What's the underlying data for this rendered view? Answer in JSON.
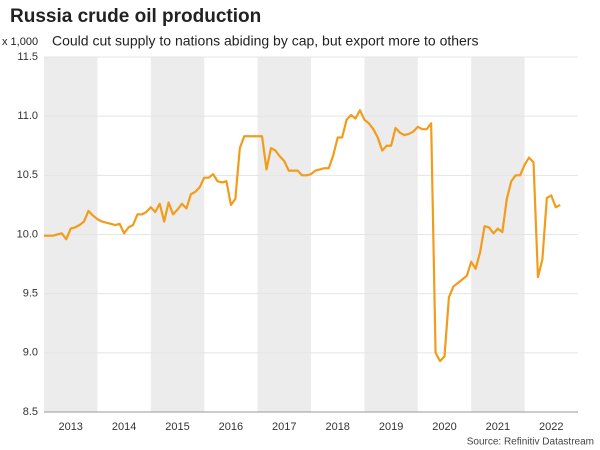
{
  "chart_data": {
    "type": "line",
    "title": "Russia crude oil production",
    "subtitle": "Could cut supply to nations abiding by cap, but export more to others",
    "y_unit": "x 1,000",
    "source": "Source: Refinitiv Datastream",
    "x": [
      2013,
      2013.083,
      2013.167,
      2013.25,
      2013.333,
      2013.417,
      2013.5,
      2013.583,
      2013.667,
      2013.75,
      2013.833,
      2013.917,
      2014,
      2014.083,
      2014.167,
      2014.25,
      2014.333,
      2014.417,
      2014.5,
      2014.583,
      2014.667,
      2014.75,
      2014.833,
      2014.917,
      2015,
      2015.083,
      2015.167,
      2015.25,
      2015.333,
      2015.417,
      2015.5,
      2015.583,
      2015.667,
      2015.75,
      2015.833,
      2015.917,
      2016,
      2016.083,
      2016.167,
      2016.25,
      2016.333,
      2016.417,
      2016.5,
      2016.583,
      2016.667,
      2016.75,
      2016.833,
      2016.917,
      2017,
      2017.083,
      2017.167,
      2017.25,
      2017.333,
      2017.417,
      2017.5,
      2017.583,
      2017.667,
      2017.75,
      2017.833,
      2017.917,
      2018,
      2018.083,
      2018.167,
      2018.25,
      2018.333,
      2018.417,
      2018.5,
      2018.583,
      2018.667,
      2018.75,
      2018.833,
      2018.917,
      2019,
      2019.083,
      2019.167,
      2019.25,
      2019.333,
      2019.417,
      2019.5,
      2019.583,
      2019.667,
      2019.75,
      2019.833,
      2019.917,
      2020,
      2020.083,
      2020.167,
      2020.25,
      2020.333,
      2020.417,
      2020.5,
      2020.583,
      2020.667,
      2020.75,
      2020.833,
      2020.917,
      2021,
      2021.083,
      2021.167,
      2021.25,
      2021.333,
      2021.417,
      2021.5,
      2021.583,
      2021.667,
      2021.75,
      2021.833,
      2021.917,
      2022,
      2022.083,
      2022.167,
      2022.25,
      2022.333,
      2022.417,
      2022.5,
      2022.583,
      2022.667
    ],
    "series": [
      {
        "name": "Russia crude oil production",
        "color": "#f29c1c",
        "values": [
          9.99,
          9.99,
          9.99,
          10.0,
          10.01,
          9.96,
          10.05,
          10.06,
          10.08,
          10.11,
          10.2,
          10.16,
          10.13,
          10.11,
          10.1,
          10.09,
          10.08,
          10.09,
          10.01,
          10.06,
          10.08,
          10.17,
          10.17,
          10.19,
          10.23,
          10.19,
          10.26,
          10.11,
          10.27,
          10.17,
          10.21,
          10.26,
          10.22,
          10.34,
          10.36,
          10.4,
          10.48,
          10.48,
          10.51,
          10.45,
          10.44,
          10.45,
          10.25,
          10.3,
          10.73,
          10.83,
          10.83,
          10.83,
          10.83,
          10.83,
          10.55,
          10.73,
          10.71,
          10.66,
          10.62,
          10.54,
          10.54,
          10.54,
          10.5,
          10.5,
          10.51,
          10.54,
          10.55,
          10.56,
          10.56,
          10.67,
          10.82,
          10.82,
          10.97,
          11.01,
          10.98,
          11.05,
          10.97,
          10.94,
          10.89,
          10.82,
          10.71,
          10.75,
          10.75,
          10.9,
          10.86,
          10.84,
          10.85,
          10.87,
          10.91,
          10.89,
          10.89,
          10.94,
          9.0,
          8.93,
          8.97,
          9.47,
          9.56,
          9.59,
          9.62,
          9.65,
          9.77,
          9.71,
          9.85,
          10.07,
          10.06,
          10.01,
          10.05,
          10.02,
          10.3,
          10.45,
          10.5,
          10.5,
          10.59,
          10.65,
          10.61,
          9.64,
          9.79,
          10.31,
          10.33,
          10.23,
          10.25
        ]
      }
    ],
    "xlim": [
      2013,
      2023
    ],
    "xticks": [
      {
        "value": 2013.5,
        "label": "2013"
      },
      {
        "value": 2014.5,
        "label": "2014"
      },
      {
        "value": 2015.5,
        "label": "2015"
      },
      {
        "value": 2016.5,
        "label": "2016"
      },
      {
        "value": 2017.5,
        "label": "2017"
      },
      {
        "value": 2018.5,
        "label": "2018"
      },
      {
        "value": 2019.5,
        "label": "2019"
      },
      {
        "value": 2020.5,
        "label": "2020"
      },
      {
        "value": 2021.5,
        "label": "2021"
      },
      {
        "value": 2022.5,
        "label": "2022"
      }
    ],
    "ylim": [
      8.5,
      11.5
    ],
    "yticks": [
      8.5,
      {
        "value": 9,
        "label": "9.0"
      },
      9.5,
      {
        "value": 10,
        "label": "10.0"
      },
      10.5,
      {
        "value": 11,
        "label": "11.0"
      },
      11.5
    ],
    "grid": true,
    "band_color": "#ececec"
  }
}
